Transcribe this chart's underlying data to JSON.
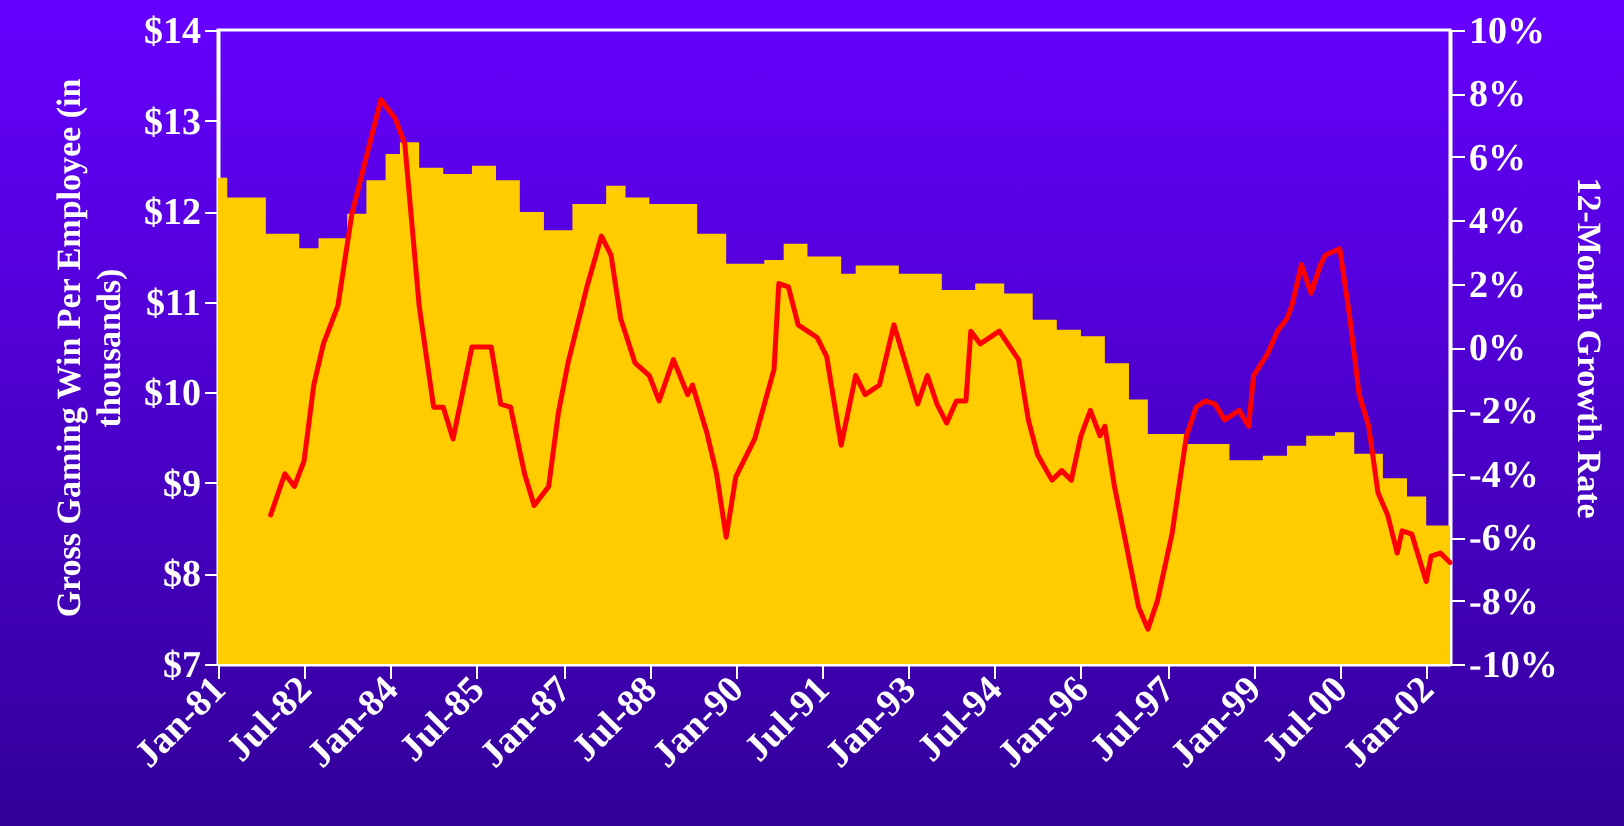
{
  "chart_data": {
    "type": "area",
    "ylabel": "Gross Gaming Win Per Employee  (in thousands)",
    "y2label": "12-Month Growth Rate",
    "xlim": [
      "1981-01",
      "2002-06"
    ],
    "xticks": [
      {
        "value": "1981-01",
        "label": "Jan-81"
      },
      {
        "value": "1982-07",
        "label": "Jul-82"
      },
      {
        "value": "1984-01",
        "label": "Jan-84"
      },
      {
        "value": "1985-07",
        "label": "Jul-85"
      },
      {
        "value": "1987-01",
        "label": "Jan-87"
      },
      {
        "value": "1988-07",
        "label": "Jul-88"
      },
      {
        "value": "1990-01",
        "label": "Jan-90"
      },
      {
        "value": "1991-07",
        "label": "Jul-91"
      },
      {
        "value": "1993-01",
        "label": "Jan-93"
      },
      {
        "value": "1994-07",
        "label": "Jul-94"
      },
      {
        "value": "1996-01",
        "label": "Jan-96"
      },
      {
        "value": "1997-07",
        "label": "Jul-97"
      },
      {
        "value": "1999-01",
        "label": "Jan-99"
      },
      {
        "value": "2000-07",
        "label": "Jul-00"
      },
      {
        "value": "2002-01",
        "label": "Jan-02"
      }
    ],
    "ylim": [
      7,
      14
    ],
    "yticks": [
      {
        "value": 7,
        "label": "$7"
      },
      {
        "value": 8,
        "label": "$8"
      },
      {
        "value": 9,
        "label": "$9"
      },
      {
        "value": 10,
        "label": "$10"
      },
      {
        "value": 11,
        "label": "$11"
      },
      {
        "value": 12,
        "label": "$12"
      },
      {
        "value": 13,
        "label": "$13"
      },
      {
        "value": 14,
        "label": "$14"
      }
    ],
    "y2lim": [
      -10,
      10
    ],
    "y2ticks": [
      {
        "value": -10,
        "label": "-10%"
      },
      {
        "value": -8,
        "label": "-8%"
      },
      {
        "value": -6,
        "label": "-6%"
      },
      {
        "value": -4,
        "label": "-4%"
      },
      {
        "value": -2,
        "label": "-2%"
      },
      {
        "value": 0,
        "label": "0%"
      },
      {
        "value": 2,
        "label": "2%"
      },
      {
        "value": 4,
        "label": "4%"
      },
      {
        "value": 6,
        "label": "6%"
      },
      {
        "value": 8,
        "label": "8%"
      },
      {
        "value": 10,
        "label": "10%"
      }
    ],
    "grid": false,
    "marker": "none",
    "series": [
      {
        "color": "#ffcc00",
        "x": [
          "1981-01",
          "1981-03",
          "1981-08",
          "1981-11",
          "1982-06",
          "1982-10",
          "1983-04",
          "1983-08",
          "1983-12",
          "1984-03",
          "1984-07",
          "1984-12",
          "1985-06",
          "1985-11",
          "1986-04",
          "1986-09",
          "1987-03",
          "1987-10",
          "1988-02",
          "1988-07",
          "1988-12",
          "1989-05",
          "1989-11",
          "1990-07",
          "1990-11",
          "1991-04",
          "1991-11",
          "1992-02",
          "1992-11",
          "1993-08",
          "1994-03",
          "1994-09",
          "1995-03",
          "1995-08",
          "1996-01",
          "1996-06",
          "1996-11",
          "1997-03",
          "1997-11",
          "1998-08",
          "1999-03",
          "1999-08",
          "1999-12",
          "2000-06",
          "2000-10",
          "2001-04",
          "2001-09",
          "2002-01",
          "2002-06"
        ],
        "values": [
          12.37,
          12.15,
          12.15,
          11.75,
          11.59,
          11.7,
          11.97,
          12.34,
          12.63,
          12.76,
          12.48,
          12.41,
          12.5,
          12.34,
          11.99,
          11.79,
          12.08,
          12.28,
          12.15,
          12.08,
          12.08,
          11.75,
          11.42,
          11.46,
          11.64,
          11.5,
          11.31,
          11.4,
          11.31,
          11.13,
          11.2,
          11.09,
          10.8,
          10.69,
          10.62,
          10.32,
          9.92,
          9.54,
          9.43,
          9.25,
          9.3,
          9.41,
          9.52,
          9.56,
          9.32,
          9.05,
          8.85,
          8.53,
          8.39
        ]
      },
      {
        "type": "line",
        "axis": "y2",
        "color": "#ff0000",
        "line_style": "solid",
        "x": [
          "1981-12",
          "1982-03",
          "1982-05",
          "1982-07",
          "1982-09",
          "1982-11",
          "1983-02",
          "1983-05",
          "1983-07",
          "1983-11",
          "1984-02",
          "1984-04",
          "1984-07",
          "1984-10",
          "1984-12",
          "1985-02",
          "1985-06",
          "1985-10",
          "1985-12",
          "1986-02",
          "1986-05",
          "1986-07",
          "1986-10",
          "1986-12",
          "1987-02",
          "1987-06",
          "1987-09",
          "1987-11",
          "1988-01",
          "1988-04",
          "1988-07",
          "1988-09",
          "1988-12",
          "1989-03",
          "1989-04",
          "1989-07",
          "1989-09",
          "1989-11",
          "1990-01",
          "1990-05",
          "1990-09",
          "1990-10",
          "1990-12",
          "1991-02",
          "1991-06",
          "1991-08",
          "1991-11",
          "1992-02",
          "1992-04",
          "1992-07",
          "1992-10",
          "1993-03",
          "1993-05",
          "1993-07",
          "1993-09",
          "1993-11",
          "1994-01",
          "1994-02",
          "1994-04",
          "1994-08",
          "1994-12",
          "1995-02",
          "1995-04",
          "1995-07",
          "1995-09",
          "1995-11",
          "1996-01",
          "1996-03",
          "1996-05",
          "1996-06",
          "1996-08",
          "1996-10",
          "1997-01",
          "1997-03",
          "1997-05",
          "1997-08",
          "1997-11",
          "1998-01",
          "1998-03",
          "1998-05",
          "1998-07",
          "1998-10",
          "1998-12",
          "1999-01",
          "1999-04",
          "1999-06",
          "1999-08",
          "1999-09",
          "1999-11",
          "2000-01",
          "2000-03",
          "2000-04",
          "2000-07",
          "2000-09",
          "2000-11",
          "2001-01",
          "2001-03",
          "2001-05",
          "2001-07",
          "2001-08",
          "2001-10",
          "2002-01",
          "2002-02",
          "2002-04",
          "2002-06"
        ],
        "values": [
          -5.3,
          -4.0,
          -4.4,
          -3.6,
          -1.2,
          0.1,
          1.3,
          4.2,
          5.4,
          7.8,
          7.2,
          6.4,
          1.3,
          -1.9,
          -1.9,
          -2.9,
          0.0,
          0.0,
          -1.8,
          -1.9,
          -4.0,
          -5.0,
          -4.4,
          -2.1,
          -0.5,
          1.9,
          3.5,
          2.9,
          0.9,
          -0.5,
          -0.9,
          -1.7,
          -0.4,
          -1.5,
          -1.2,
          -2.7,
          -4.0,
          -6.0,
          -4.1,
          -2.9,
          -0.7,
          2.0,
          1.9,
          0.7,
          0.3,
          -0.3,
          -3.1,
          -0.9,
          -1.5,
          -1.2,
          0.7,
          -1.8,
          -0.9,
          -1.8,
          -2.4,
          -1.7,
          -1.7,
          0.5,
          0.1,
          0.5,
          -0.4,
          -2.3,
          -3.4,
          -4.2,
          -3.9,
          -4.2,
          -2.8,
          -2.0,
          -2.8,
          -2.5,
          -4.4,
          -5.9,
          -8.2,
          -8.9,
          -8.0,
          -5.9,
          -2.8,
          -1.9,
          -1.7,
          -1.8,
          -2.3,
          -2.0,
          -2.5,
          -0.9,
          -0.2,
          0.5,
          0.9,
          1.3,
          2.6,
          1.7,
          2.6,
          2.9,
          3.1,
          1.0,
          -1.5,
          -2.5,
          -4.6,
          -5.3,
          -6.5,
          -5.8,
          -5.9,
          -7.4,
          -6.6,
          -6.5,
          -6.8
        ]
      }
    ]
  }
}
